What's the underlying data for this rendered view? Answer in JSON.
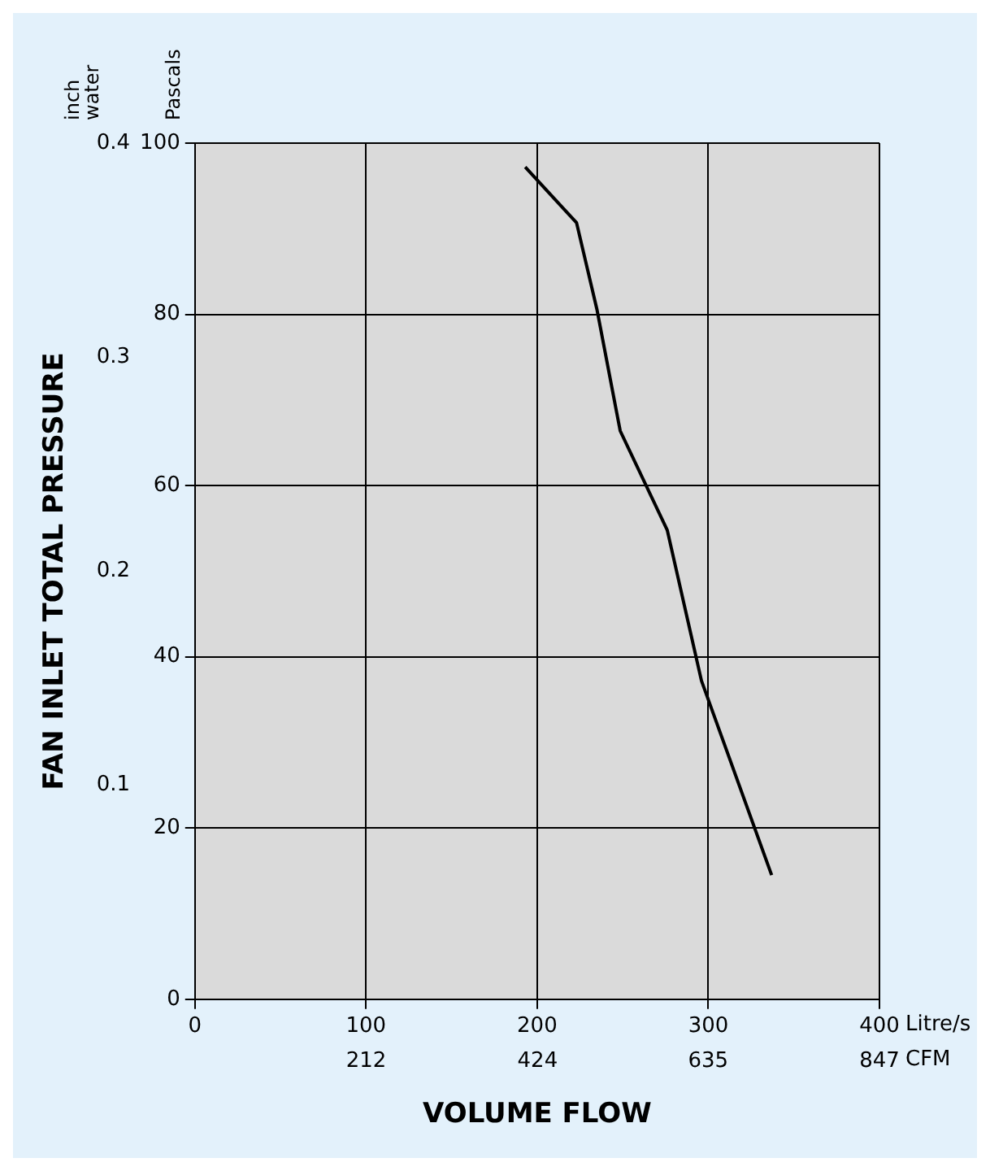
{
  "chart_data": {
    "type": "line",
    "xlabel": "VOLUME FLOW",
    "y2label": "FAN INLET TOTAL PRESSURE",
    "annotations": [
      "Pascals",
      "inch water",
      "Litre/s",
      "CFM"
    ],
    "series": [
      {
        "color": "#000000",
        "x": [
          193,
          223,
          235,
          248.5,
          276,
          296,
          337
        ],
        "values": [
          97.2,
          90.7,
          80.5,
          66.4,
          54.8,
          37.2,
          14.5
        ]
      }
    ],
    "xlim": [
      0,
      400
    ],
    "xticks": [
      0,
      100,
      200,
      300,
      400
    ],
    "x2lim": [
      0,
      847
    ],
    "x2ticks": [
      212,
      424,
      635,
      847
    ],
    "ylim": [
      0,
      100
    ],
    "yticks": [
      0,
      20,
      40,
      60,
      80,
      100
    ],
    "y2lim": [
      0,
      0.4
    ],
    "y2ticks": [
      0.1,
      0.2,
      0.3,
      0.4
    ],
    "grid": true,
    "legend": false,
    "marker": "none",
    "line_style": "solid"
  }
}
